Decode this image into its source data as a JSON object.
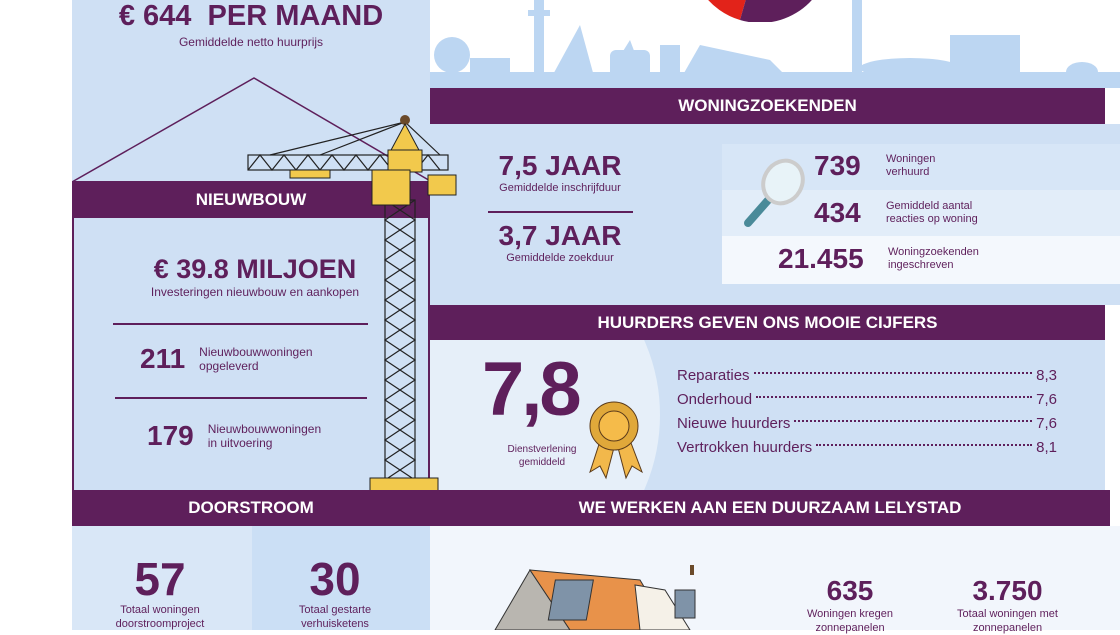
{
  "rent": {
    "value": "€ 644  PER MAAND",
    "label": "Gemiddelde netto huurprijs"
  },
  "nieuwbouw": {
    "title": "NIEUWBOUW",
    "invest_value": "€ 39.8 MILJOEN",
    "invest_label": "Investeringen nieuwbouw en aankopen",
    "items": [
      {
        "value": "211",
        "label1": "Nieuwbouwwoningen",
        "label2": "opgeleverd"
      },
      {
        "value": "179",
        "label1": "Nieuwbouwwoningen",
        "label2": "in uitvoering"
      }
    ]
  },
  "woningzoekenden": {
    "title": "WONINGZOEKENDEN",
    "durations": [
      {
        "value": "7,5 JAAR",
        "label": "Gemiddelde inschrijfduur"
      },
      {
        "value": "3,7 JAAR",
        "label": "Gemiddelde zoekduur"
      }
    ],
    "stats": [
      {
        "value": "739",
        "label1": "Woningen",
        "label2": "verhuurd"
      },
      {
        "value": "434",
        "label1": "Gemiddeld aantal",
        "label2": "reacties op woning"
      },
      {
        "value": "21.455",
        "label1": "Woningzoekenden",
        "label2": "ingeschreven"
      }
    ]
  },
  "huurders": {
    "title": "HUURDERS GEVEN ONS MOOIE CIJFERS",
    "overall": "7,8",
    "overall_label1": "Dienstverlening",
    "overall_label2": "gemiddeld",
    "scores": [
      {
        "label": "Reparaties",
        "value": "8,3"
      },
      {
        "label": "Onderhoud",
        "value": "7,6"
      },
      {
        "label": "Nieuwe huurders",
        "value": "7,6"
      },
      {
        "label": "Vertrokken huurders",
        "value": "8,1"
      }
    ]
  },
  "doorstroom": {
    "title": "DOORSTROOM",
    "items": [
      {
        "value": "57",
        "label1": "Totaal woningen",
        "label2": "doorstroomproject"
      },
      {
        "value": "30",
        "label1": "Totaal gestarte",
        "label2": "verhuisketens"
      }
    ]
  },
  "duurzaam": {
    "title": "WE WERKEN AAN EEN DUURZAAM LELYSTAD",
    "items": [
      {
        "value": "635",
        "label1": "Woningen kregen",
        "label2": "zonnepanelen"
      },
      {
        "value": "3.750",
        "label1": "Totaal woningen met",
        "label2": "zonnepanelen"
      }
    ]
  },
  "colors": {
    "purple": "#5e1f5b",
    "light_blue": "#cfe0f4",
    "red": "#e2231a",
    "yellow": "#f2c94c"
  }
}
